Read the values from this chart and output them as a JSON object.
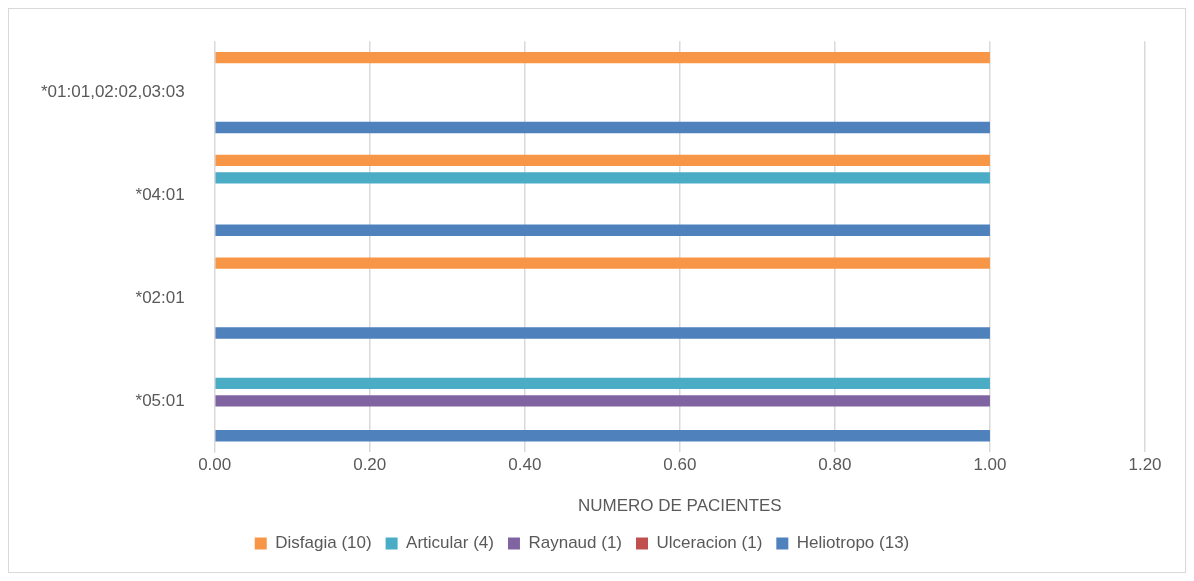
{
  "chart_data": {
    "type": "bar",
    "orientation": "horizontal",
    "xlabel": "NUMERO DE PACIENTES",
    "categories": [
      "*01:01,02:02,03:03",
      "*04:01",
      "*02:01",
      "*05:01"
    ],
    "series": [
      {
        "name": "Disfagia (10)",
        "color": "#f79646",
        "values": [
          1,
          1,
          1,
          null
        ]
      },
      {
        "name": "Articular (4)",
        "color": "#4bacc6",
        "values": [
          null,
          1,
          null,
          1
        ]
      },
      {
        "name": "Raynaud (1)",
        "color": "#8064a2",
        "values": [
          null,
          null,
          null,
          1
        ]
      },
      {
        "name": "Ulceracion (1)",
        "color": "#c0504d",
        "values": [
          null,
          null,
          null,
          null
        ]
      },
      {
        "name": "Heliotropo (13)",
        "color": "#4f81bd",
        "values": [
          1,
          1,
          1,
          1
        ]
      }
    ],
    "xlim": [
      0,
      1.2
    ],
    "xticks": [
      {
        "value": 0,
        "label": "0.00"
      },
      {
        "value": 0.2,
        "label": "0.20"
      },
      {
        "value": 0.4,
        "label": "0.40"
      },
      {
        "value": 0.6,
        "label": "0.60"
      },
      {
        "value": 0.8,
        "label": "0.80"
      },
      {
        "value": 1,
        "label": "1.00"
      },
      {
        "value": 1.2,
        "label": "1.20"
      }
    ],
    "grid": "x",
    "legend": "bottom"
  }
}
